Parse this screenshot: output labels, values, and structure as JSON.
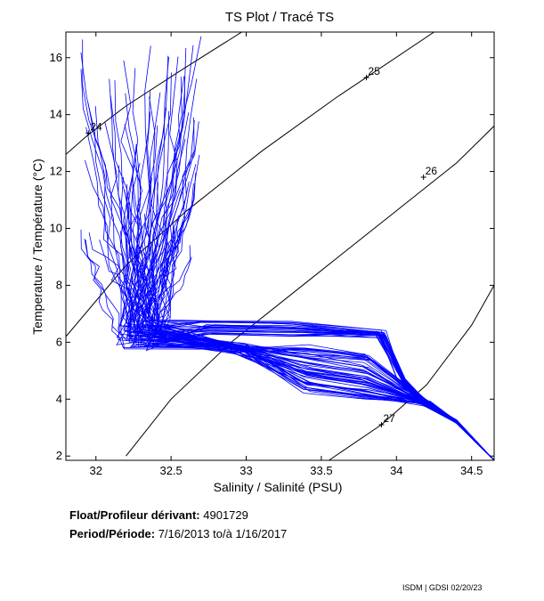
{
  "chart_data": {
    "type": "line",
    "title": "TS Plot / Tracé TS",
    "xlabel": "Salinity / Salinité (PSU)",
    "ylabel": "Temperature / Température (°C)",
    "xlim": [
      31.8,
      34.65
    ],
    "ylim": [
      1.85,
      16.9
    ],
    "x_ticks": [
      32,
      32.5,
      33,
      33.5,
      34,
      34.5
    ],
    "x_tick_labels": [
      "32",
      "32.5",
      "33",
      "33.5",
      "34",
      "34.5"
    ],
    "y_ticks": [
      2,
      4,
      6,
      8,
      10,
      12,
      14,
      16
    ],
    "y_tick_labels": [
      "2",
      "4",
      "6",
      "8",
      "10",
      "12",
      "14",
      "16"
    ],
    "grid": false,
    "line_color": "#0000ff",
    "profile_count": 80,
    "profile_shape": {
      "surface_salinity_range": [
        31.8,
        32.8
      ],
      "surface_temperature_range": [
        9,
        16.8
      ],
      "mixed_layer_knee": [
        32.5,
        6.2
      ],
      "intermediate_warm_band": [
        [
          32.7,
          6.5
        ],
        [
          33.9,
          6.3
        ],
        [
          34.05,
          4.6
        ]
      ],
      "deep_convergence_point": [
        34.65,
        1.85
      ]
    },
    "density_isolines": [
      {
        "label": "24",
        "points": [
          [
            31.8,
            12.6
          ],
          [
            31.95,
            13.3
          ],
          [
            32.2,
            14.3
          ],
          [
            32.55,
            15.5
          ],
          [
            32.97,
            16.9
          ]
        ]
      },
      {
        "label": "25",
        "points": [
          [
            31.8,
            6.2
          ],
          [
            32.2,
            8.7
          ],
          [
            32.6,
            10.6
          ],
          [
            33.1,
            12.7
          ],
          [
            33.6,
            14.6
          ],
          [
            34.25,
            16.9
          ]
        ]
      },
      {
        "label": "26",
        "points": [
          [
            32.2,
            2.0
          ],
          [
            32.5,
            4.0
          ],
          [
            32.9,
            6.0
          ],
          [
            33.4,
            8.1
          ],
          [
            33.9,
            10.2
          ],
          [
            34.4,
            12.3
          ],
          [
            34.65,
            13.6
          ]
        ]
      },
      {
        "label": "27",
        "points": [
          [
            33.55,
            1.85
          ],
          [
            33.9,
            3.1
          ],
          [
            34.2,
            4.5
          ],
          [
            34.5,
            6.6
          ],
          [
            34.65,
            8.0
          ]
        ]
      }
    ],
    "isoline_markers": [
      {
        "label": "24",
        "x": 31.95,
        "y": 13.35
      },
      {
        "label": "25",
        "x": 33.8,
        "y": 15.3
      },
      {
        "label": "26",
        "x": 34.18,
        "y": 11.8
      },
      {
        "label": "27",
        "x": 33.9,
        "y": 3.1
      }
    ]
  },
  "info": {
    "float_label": "Float/Profileur dérivant:",
    "float_value": "4901729",
    "period_label": "Period/Période:",
    "period_value": "7/16/2013  to/à  1/16/2017"
  },
  "credit": "ISDM | GDSI  02/20/23"
}
